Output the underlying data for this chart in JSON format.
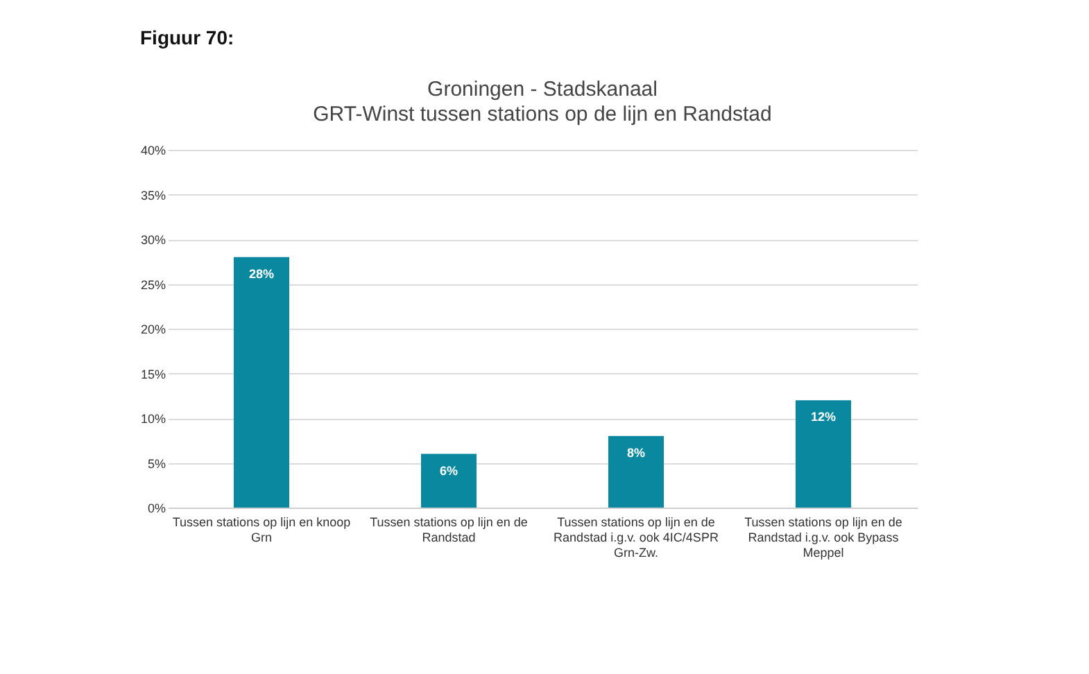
{
  "chart_data": {
    "type": "bar",
    "title": "Groningen - Stadskanaal",
    "subtitle": "GRT-Winst tussen stations op de lijn en Randstad",
    "annotations": [
      "Figuur 70:"
    ],
    "categories": [
      "Tussen stations op lijn en knoop Grn",
      "Tussen stations op lijn en de Randstad",
      "Tussen stations op lijn en de Randstad i.g.v. ook 4IC/4SPR Grn-Zw.",
      "Tussen stations op lijn en de Randstad i.g.v. ook Bypass Meppel"
    ],
    "values": [
      28,
      6,
      8,
      12
    ],
    "value_labels": [
      "28%",
      "6%",
      "8%",
      "12%"
    ],
    "color": "#0a88a0",
    "ylim": [
      0,
      40
    ],
    "yticks": [
      {
        "value": 0,
        "label": "0%"
      },
      {
        "value": 5,
        "label": "5%"
      },
      {
        "value": 10,
        "label": "10%"
      },
      {
        "value": 15,
        "label": "15%"
      },
      {
        "value": 20,
        "label": "20%"
      },
      {
        "value": 25,
        "label": "25%"
      },
      {
        "value": 30,
        "label": "30%"
      },
      {
        "value": 35,
        "label": "35%"
      },
      {
        "value": 40,
        "label": "40%"
      }
    ],
    "grid": "y"
  }
}
